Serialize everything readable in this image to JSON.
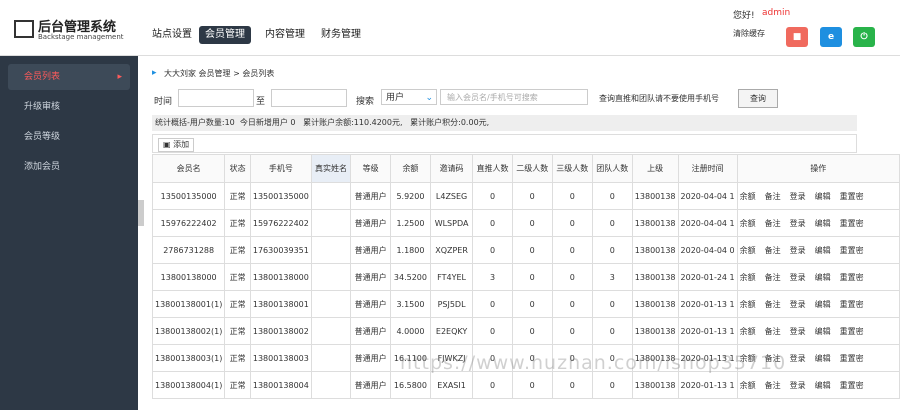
{
  "header": {
    "title": "后台管理系统",
    "subtitle": "Backstage management",
    "nav": [
      "站点设置",
      "会员管理",
      "内容管理",
      "财务管理"
    ],
    "greeting": "您好!",
    "user": "admin",
    "clear_cache": "清除缓存"
  },
  "sidebar": {
    "items": [
      "会员列表",
      "升级审核",
      "会员等级",
      "添加会员"
    ]
  },
  "breadcrumb": "大大刘家 会员管理 > 会员列表",
  "filter": {
    "time_label": "时间",
    "to_label": "至",
    "search_label": "搜索",
    "select": "用户",
    "placeholder": "输入会员名/手机号可搜索",
    "note": "查询直推和团队请不要使用手机号",
    "button": "查询"
  },
  "stats": "统计概括-用户数量:10  今日新增用户 0   累计账户余额:110.4200元,   累计账户积分:0.00元,",
  "add_button": "添加",
  "table": {
    "headers": [
      "会员名",
      "状态",
      "手机号",
      "真实姓名",
      "等级",
      "余额",
      "邀请码",
      "直推人数",
      "二级人数",
      "三级人数",
      "团队人数",
      "上级",
      "注册时间",
      "操作"
    ],
    "actions": [
      "余额",
      "备注",
      "登录",
      "编辑",
      "重置密"
    ],
    "rows": [
      [
        "13500135000",
        "正常",
        "13500135000",
        "",
        "普通用户",
        "5.9200",
        "L4ZSEG",
        "0",
        "0",
        "0",
        "0",
        "13800138",
        "2020-04-04 1"
      ],
      [
        "15976222402",
        "正常",
        "15976222402",
        "",
        "普通用户",
        "1.2500",
        "WLSPDA",
        "0",
        "0",
        "0",
        "0",
        "13800138",
        "2020-04-04 1"
      ],
      [
        "2786731288",
        "正常",
        "17630039351",
        "",
        "普通用户",
        "1.1800",
        "XQZPER",
        "0",
        "0",
        "0",
        "0",
        "13800138",
        "2020-04-04 0"
      ],
      [
        "13800138000",
        "正常",
        "13800138000",
        "",
        "普通用户",
        "34.5200",
        "FT4YEL",
        "3",
        "0",
        "0",
        "3",
        "13800138",
        "2020-01-24 1"
      ],
      [
        "13800138001(1)",
        "正常",
        "13800138001",
        "",
        "普通用户",
        "3.1500",
        "PSJ5DL",
        "0",
        "0",
        "0",
        "0",
        "13800138",
        "2020-01-13 1"
      ],
      [
        "13800138002(1)",
        "正常",
        "13800138002",
        "",
        "普通用户",
        "4.0000",
        "E2EQKY",
        "0",
        "0",
        "0",
        "0",
        "13800138",
        "2020-01-13 1"
      ],
      [
        "13800138003(1)",
        "正常",
        "13800138003",
        "",
        "普通用户",
        "16.1100",
        "FJWKZJ",
        "0",
        "0",
        "0",
        "0",
        "13800138",
        "2020-01-13 1"
      ],
      [
        "13800138004(1)",
        "正常",
        "13800138004",
        "",
        "普通用户",
        "16.5800",
        "EXASI1",
        "0",
        "0",
        "0",
        "0",
        "13800138",
        "2020-01-13 1"
      ]
    ]
  },
  "watermark": "https://www.huzhan.com/ishop35710"
}
